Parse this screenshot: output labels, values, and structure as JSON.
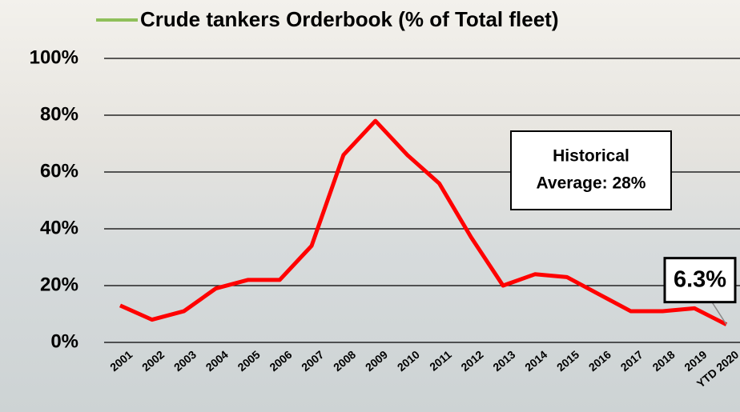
{
  "chart_data": {
    "type": "line",
    "categories": [
      "2001",
      "2002",
      "2003",
      "2004",
      "2005",
      "2006",
      "2007",
      "2008",
      "2009",
      "2010",
      "2011",
      "2012",
      "2013",
      "2014",
      "2015",
      "2016",
      "2017",
      "2018",
      "2019",
      "YTD 2020"
    ],
    "series": [
      {
        "name": "Crude tankers Orderbook (% of Total fleet)",
        "color": "#ff0000",
        "legend_color": "#8fbf5a",
        "values": [
          13,
          8,
          11,
          19,
          22,
          22,
          34,
          66,
          78,
          66,
          56,
          37,
          20,
          24,
          23,
          17,
          11,
          11,
          12,
          6.3
        ],
        "value_labels": [
          null,
          null,
          null,
          null,
          null,
          null,
          null,
          null,
          null,
          null,
          null,
          null,
          null,
          null,
          null,
          null,
          null,
          null,
          null,
          "6.3%"
        ]
      }
    ],
    "ylim": [
      0,
      100
    ],
    "yticks": [
      {
        "value": 0,
        "label": "0%"
      },
      {
        "value": 20,
        "label": "20%"
      },
      {
        "value": 40,
        "label": "40%"
      },
      {
        "value": 60,
        "label": "60%"
      },
      {
        "value": 80,
        "label": "80%"
      },
      {
        "value": 100,
        "label": "100%"
      }
    ],
    "grid": true,
    "annotation": [
      "Historical",
      "Average: 28%"
    ]
  }
}
